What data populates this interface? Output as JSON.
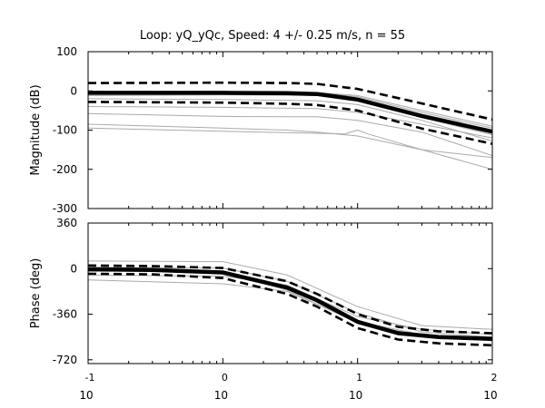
{
  "title": "Loop: yQ_yQc, Speed: 4 +/- 0.25 m/s, n = 55",
  "chart_data": [
    {
      "type": "line",
      "title": "Loop: yQ_yQc, Speed: 4 +/- 0.25 m/s, n = 55",
      "xlabel": "",
      "ylabel": "Magnitude (dB)",
      "xscale": "log",
      "xlim": [
        0.1,
        100
      ],
      "ylim": [
        -300,
        100
      ],
      "yticks": [
        -300,
        -200,
        -100,
        0,
        100
      ],
      "yticklabels": [
        "-300",
        "-200",
        "-100",
        "0",
        "100"
      ],
      "grid": false,
      "series": [
        {
          "role": "mean",
          "color": "#000000",
          "style": "solid-thick",
          "x": [
            0.1,
            1,
            3,
            5,
            10,
            30,
            100
          ],
          "y": [
            -5,
            -5,
            -6,
            -8,
            -22,
            -64,
            -104
          ]
        },
        {
          "role": "upper-bound",
          "color": "#000000",
          "style": "dashed",
          "x": [
            0.1,
            1,
            3,
            5,
            10,
            30,
            100
          ],
          "y": [
            20,
            21,
            20,
            18,
            5,
            -32,
            -73
          ]
        },
        {
          "role": "lower-bound",
          "color": "#000000",
          "style": "dashed",
          "x": [
            0.1,
            1,
            3,
            5,
            10,
            30,
            100
          ],
          "y": [
            -28,
            -30,
            -33,
            -36,
            -50,
            -96,
            -135
          ]
        },
        {
          "role": "sample",
          "color": "#aaaaaa",
          "style": "thin",
          "x": [
            0.1,
            1,
            5,
            10,
            30,
            100
          ],
          "y": [
            -8,
            -5,
            -5,
            -15,
            -55,
            -95
          ]
        },
        {
          "role": "sample",
          "color": "#aaaaaa",
          "style": "thin",
          "x": [
            0.1,
            1,
            5,
            10,
            30,
            100
          ],
          "y": [
            -3,
            -2,
            -4,
            -12,
            -50,
            -90
          ]
        },
        {
          "role": "sample",
          "color": "#aaaaaa",
          "style": "thin",
          "x": [
            0.1,
            1,
            5,
            10,
            30,
            100
          ],
          "y": [
            -12,
            -10,
            -12,
            -25,
            -68,
            -112
          ]
        },
        {
          "role": "sample",
          "color": "#aaaaaa",
          "style": "thin",
          "x": [
            0.1,
            1,
            5,
            10,
            30,
            100
          ],
          "y": [
            -40,
            -42,
            -45,
            -55,
            -85,
            -120
          ]
        },
        {
          "role": "sample",
          "color": "#aaaaaa",
          "style": "thin",
          "x": [
            0.1,
            1,
            3,
            5,
            10,
            30,
            100
          ],
          "y": [
            -58,
            -65,
            -66,
            -66,
            -75,
            -105,
            -165
          ]
        },
        {
          "role": "sample",
          "color": "#aaaaaa",
          "style": "thin",
          "x": [
            0.1,
            1,
            3,
            5,
            10,
            30,
            100
          ],
          "y": [
            -85,
            -95,
            -100,
            -105,
            -115,
            -150,
            -200
          ]
        },
        {
          "role": "sample",
          "color": "#aaaaaa",
          "style": "thin",
          "x": [
            0.1,
            1,
            5,
            8,
            10,
            12,
            30,
            100
          ],
          "y": [
            -95,
            -103,
            -108,
            -110,
            -100,
            -110,
            -150,
            -170
          ]
        },
        {
          "role": "sample",
          "color": "#aaaaaa",
          "style": "thin",
          "x": [
            0.1,
            1,
            5,
            10,
            30,
            100
          ],
          "y": [
            -20,
            -22,
            -25,
            -35,
            -75,
            -128
          ]
        }
      ]
    },
    {
      "type": "line",
      "title": "",
      "xlabel": "",
      "ylabel": "Phase (deg)",
      "xscale": "log",
      "xlim": [
        0.1,
        100
      ],
      "ylim": [
        -750,
        360
      ],
      "yticks": [
        -720,
        -360,
        0,
        360
      ],
      "yticklabels": [
        "-720",
        "-360",
        "0",
        "360"
      ],
      "xticklabels": [
        {
          "base": "10",
          "exponent": "-1"
        },
        {
          "base": "10",
          "exponent": "0"
        },
        {
          "base": "10",
          "exponent": "1"
        },
        {
          "base": "10",
          "exponent": "2"
        }
      ],
      "grid": false,
      "series": [
        {
          "role": "mean",
          "color": "#000000",
          "style": "solid-thick",
          "x": [
            0.1,
            0.3,
            1,
            3,
            5,
            10,
            20,
            40,
            100
          ],
          "y": [
            -5,
            -10,
            -30,
            -150,
            -250,
            -420,
            -510,
            -540,
            -555
          ]
        },
        {
          "role": "upper-bound",
          "color": "#000000",
          "style": "dashed",
          "x": [
            0.1,
            0.3,
            1,
            3,
            5,
            10,
            20,
            40,
            100
          ],
          "y": [
            25,
            20,
            5,
            -100,
            -200,
            -360,
            -460,
            -495,
            -510
          ]
        },
        {
          "role": "lower-bound",
          "color": "#000000",
          "style": "dashed",
          "x": [
            0.1,
            0.3,
            1,
            3,
            5,
            10,
            20,
            40,
            100
          ],
          "y": [
            -40,
            -45,
            -75,
            -200,
            -300,
            -470,
            -560,
            -590,
            -605
          ]
        },
        {
          "role": "sample",
          "color": "#aaaaaa",
          "style": "thin",
          "x": [
            0.1,
            1,
            3,
            10,
            30,
            100
          ],
          "y": [
            60,
            55,
            -50,
            -300,
            -450,
            -480
          ]
        },
        {
          "role": "sample",
          "color": "#aaaaaa",
          "style": "thin",
          "x": [
            0.1,
            1,
            3,
            10,
            30,
            100
          ],
          "y": [
            -90,
            -120,
            -180,
            -420,
            -520,
            -560
          ]
        },
        {
          "role": "sample",
          "color": "#aaaaaa",
          "style": "thin",
          "x": [
            0.1,
            1,
            3,
            10,
            30,
            100
          ],
          "y": [
            -50,
            -60,
            -130,
            -380,
            -480,
            -520
          ]
        },
        {
          "role": "sample",
          "color": "#aaaaaa",
          "style": "thin",
          "x": [
            0.1,
            1,
            3,
            10,
            30,
            100
          ],
          "y": [
            10,
            5,
            -100,
            -350,
            -500,
            -540
          ]
        },
        {
          "role": "sample",
          "color": "#aaaaaa",
          "style": "thin",
          "x": [
            0.1,
            1,
            3,
            10,
            30,
            100
          ],
          "y": [
            -20,
            -25,
            -170,
            -430,
            -530,
            -570
          ]
        }
      ]
    }
  ]
}
